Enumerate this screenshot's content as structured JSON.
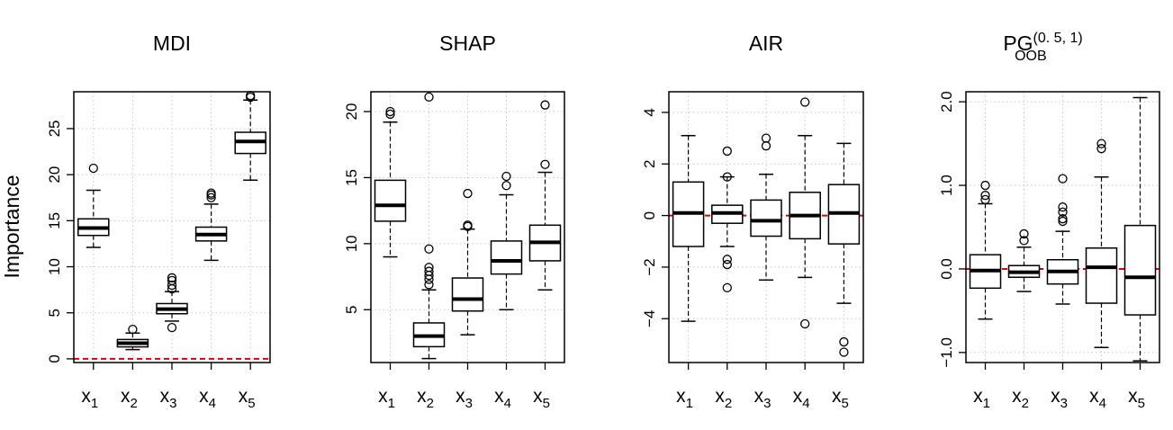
{
  "figure": {
    "ylabel": "Importance"
  },
  "chart_data": [
    {
      "type": "boxplot",
      "title": "MDI",
      "categories": [
        "X1",
        "X2",
        "X3",
        "X4",
        "X5"
      ],
      "ylim": [
        -0.4,
        29
      ],
      "yticks": [
        0,
        5,
        10,
        15,
        20,
        25
      ],
      "ytick_labels": [
        "0",
        "5",
        "10",
        "15",
        "20",
        "25"
      ],
      "reference_line": 0,
      "grid": true,
      "boxes": [
        {
          "name": "X1",
          "lower_whisker": 12.1,
          "q1": 13.4,
          "median": 14.2,
          "q3": 15.2,
          "upper_whisker": 18.3,
          "outliers": [
            20.7
          ]
        },
        {
          "name": "X2",
          "lower_whisker": 1.0,
          "q1": 1.3,
          "median": 1.7,
          "q3": 2.1,
          "upper_whisker": 2.8,
          "outliers": [
            3.2
          ]
        },
        {
          "name": "X3",
          "lower_whisker": 4.1,
          "q1": 4.9,
          "median": 5.4,
          "q3": 6.0,
          "upper_whisker": 7.3,
          "outliers": [
            3.4,
            7.6,
            8.0,
            8.5,
            8.8
          ]
        },
        {
          "name": "X4",
          "lower_whisker": 10.7,
          "q1": 12.8,
          "median": 13.5,
          "q3": 14.3,
          "upper_whisker": 16.8,
          "outliers": [
            17.5,
            17.8,
            18.0
          ]
        },
        {
          "name": "X5",
          "lower_whisker": 19.4,
          "q1": 22.3,
          "median": 23.6,
          "q3": 24.6,
          "upper_whisker": 28.1,
          "outliers": [
            28.4,
            28.6
          ]
        }
      ]
    },
    {
      "type": "boxplot",
      "title": "SHAP",
      "categories": [
        "X1",
        "X2",
        "X3",
        "X4",
        "X5"
      ],
      "ylim": [
        1.0,
        21.5
      ],
      "yticks": [
        5,
        10,
        15,
        20
      ],
      "ytick_labels": [
        "5",
        "10",
        "15",
        "20"
      ],
      "reference_line": null,
      "grid": true,
      "boxes": [
        {
          "name": "X1",
          "lower_whisker": 9.0,
          "q1": 11.7,
          "median": 12.9,
          "q3": 14.8,
          "upper_whisker": 19.2,
          "outliers": [
            19.8,
            20.0
          ]
        },
        {
          "name": "X2",
          "lower_whisker": 1.3,
          "q1": 2.2,
          "median": 3.0,
          "q3": 4.0,
          "upper_whisker": 6.5,
          "outliers": [
            6.9,
            7.3,
            7.6,
            7.9,
            8.2,
            9.6,
            21.1
          ]
        },
        {
          "name": "X3",
          "lower_whisker": 3.1,
          "q1": 4.9,
          "median": 5.8,
          "q3": 7.4,
          "upper_whisker": 11.1,
          "outliers": [
            11.3,
            11.4,
            13.8
          ]
        },
        {
          "name": "X4",
          "lower_whisker": 5.0,
          "q1": 7.7,
          "median": 8.7,
          "q3": 10.2,
          "upper_whisker": 13.7,
          "outliers": [
            14.4,
            15.1
          ]
        },
        {
          "name": "X5",
          "lower_whisker": 6.5,
          "q1": 8.7,
          "median": 10.1,
          "q3": 11.4,
          "upper_whisker": 15.4,
          "outliers": [
            16.0,
            20.5
          ]
        }
      ]
    },
    {
      "type": "boxplot",
      "title": "AIR",
      "categories": [
        "X1",
        "X2",
        "X3",
        "X4",
        "X5"
      ],
      "ylim": [
        -5.7,
        4.8
      ],
      "yticks": [
        -4,
        -2,
        0,
        2,
        4
      ],
      "ytick_labels": [
        "−4",
        "−2",
        "0",
        "2",
        "4"
      ],
      "reference_line": 0,
      "grid": true,
      "boxes": [
        {
          "name": "X1",
          "lower_whisker": -4.1,
          "q1": -1.2,
          "median": 0.1,
          "q3": 1.3,
          "upper_whisker": 3.1,
          "outliers": []
        },
        {
          "name": "X2",
          "lower_whisker": -1.2,
          "q1": -0.3,
          "median": 0.1,
          "q3": 0.4,
          "upper_whisker": 1.5,
          "outliers": [
            -2.8,
            -1.9,
            -1.7,
            1.5,
            2.5
          ]
        },
        {
          "name": "X3",
          "lower_whisker": -2.5,
          "q1": -0.8,
          "median": -0.2,
          "q3": 0.6,
          "upper_whisker": 1.6,
          "outliers": [
            2.7,
            3.0
          ]
        },
        {
          "name": "X4",
          "lower_whisker": -2.4,
          "q1": -0.9,
          "median": 0.0,
          "q3": 0.9,
          "upper_whisker": 3.1,
          "outliers": [
            -4.2,
            4.4
          ]
        },
        {
          "name": "X5",
          "lower_whisker": -3.4,
          "q1": -1.1,
          "median": 0.1,
          "q3": 1.2,
          "upper_whisker": 2.8,
          "outliers": [
            -4.9,
            -5.3
          ]
        }
      ]
    },
    {
      "type": "boxplot",
      "title": "PG",
      "title_superscript": "(0. 5, 1)",
      "title_subscript": "OOB",
      "categories": [
        "X1",
        "X2",
        "X3",
        "X4",
        "X5"
      ],
      "ylim": [
        -1.12,
        2.12
      ],
      "yticks": [
        -1.0,
        0.0,
        1.0,
        2.0
      ],
      "ytick_labels": [
        "−1.0",
        "0.0",
        "1.0",
        "2.0"
      ],
      "reference_line": 0,
      "grid": true,
      "boxes": [
        {
          "name": "X1",
          "lower_whisker": -0.6,
          "q1": -0.23,
          "median": -0.02,
          "q3": 0.17,
          "upper_whisker": 0.78,
          "outliers": [
            0.83,
            0.88,
            1.0
          ]
        },
        {
          "name": "X2",
          "lower_whisker": -0.27,
          "q1": -0.1,
          "median": -0.04,
          "q3": 0.04,
          "upper_whisker": 0.26,
          "outliers": [
            0.34,
            0.42
          ]
        },
        {
          "name": "X3",
          "lower_whisker": -0.42,
          "q1": -0.18,
          "median": -0.03,
          "q3": 0.11,
          "upper_whisker": 0.45,
          "outliers": [
            0.57,
            0.6,
            0.68,
            0.74,
            1.08
          ]
        },
        {
          "name": "X4",
          "lower_whisker": -0.94,
          "q1": -0.41,
          "median": 0.02,
          "q3": 0.25,
          "upper_whisker": 1.1,
          "outliers": [
            1.44,
            1.5
          ]
        },
        {
          "name": "X5",
          "lower_whisker": -1.1,
          "q1": -0.55,
          "median": -0.1,
          "q3": 0.52,
          "upper_whisker": 2.05,
          "outliers": []
        }
      ]
    }
  ]
}
